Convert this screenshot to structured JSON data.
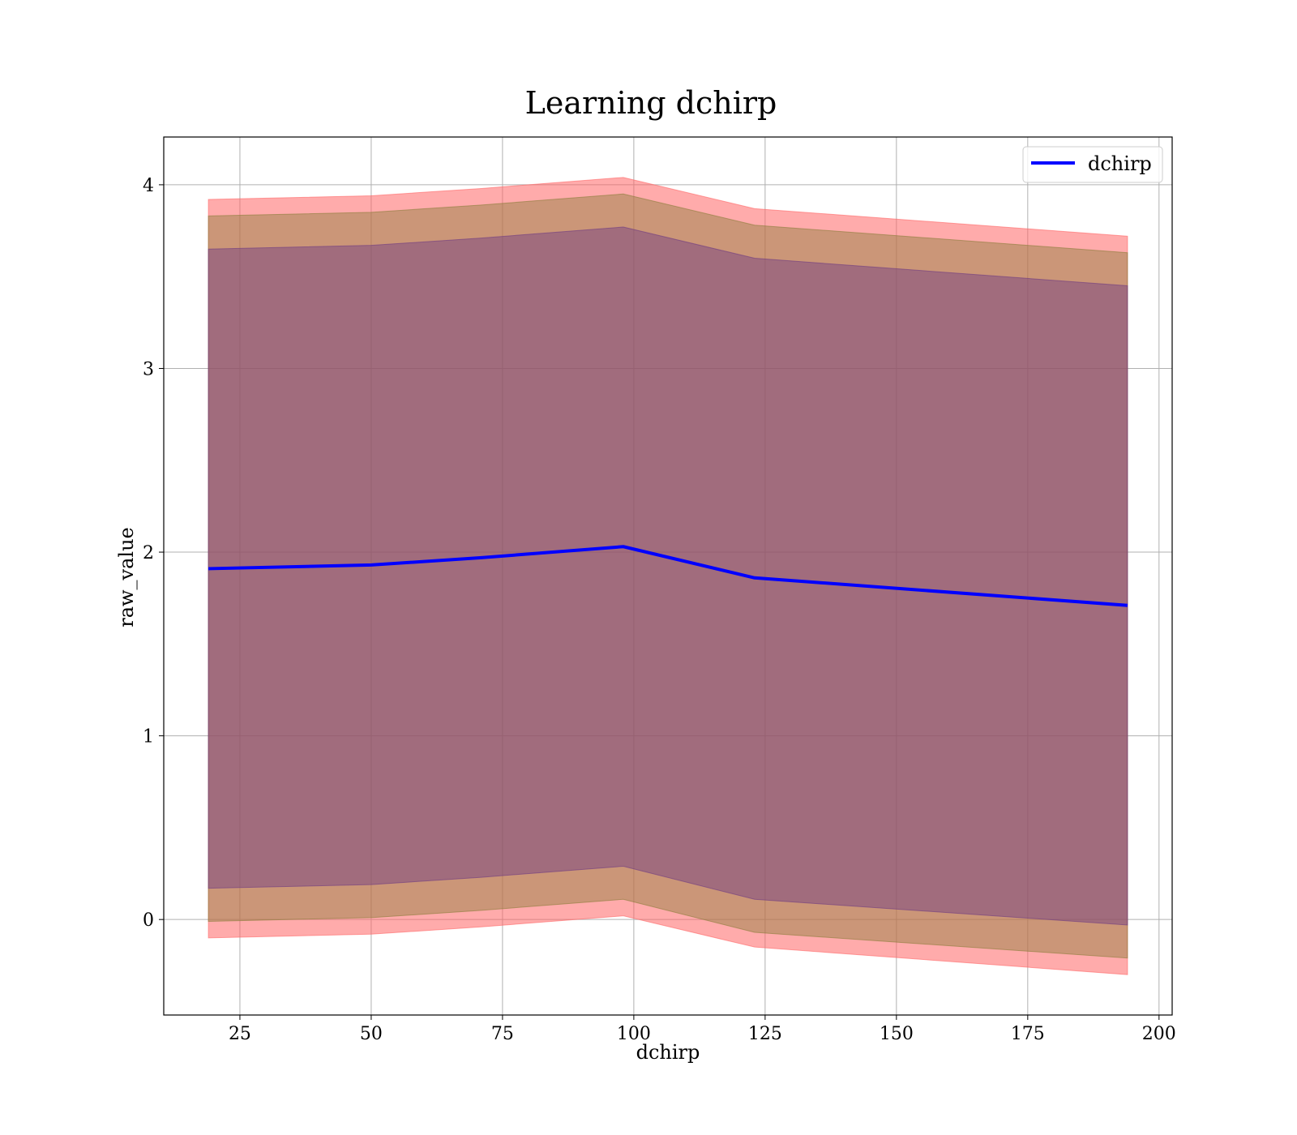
{
  "chart_data": {
    "type": "line",
    "title": "Learning dchirp",
    "xlabel": "dchirp",
    "ylabel": "raw_value",
    "xlim": [
      10.5,
      202.5
    ],
    "ylim": [
      -0.52,
      4.26
    ],
    "xticks": [
      25,
      50,
      75,
      100,
      125,
      150,
      175,
      200
    ],
    "yticks": [
      0,
      1,
      2,
      3,
      4
    ],
    "grid": true,
    "legend_position": "top-right",
    "x": [
      19,
      50,
      71,
      98,
      123,
      194
    ],
    "series": [
      {
        "name": "dchirp",
        "color": "#0000ff",
        "values": [
          1.91,
          1.93,
          1.97,
          2.03,
          1.86,
          1.71
        ]
      }
    ],
    "bands": [
      {
        "color": "#ff6666",
        "opacity": 0.55,
        "lower": [
          -0.1,
          -0.08,
          -0.04,
          0.02,
          -0.15,
          -0.3
        ],
        "upper": [
          3.92,
          3.94,
          3.98,
          4.04,
          3.87,
          3.72
        ]
      },
      {
        "color": "#8b7d3a",
        "opacity": 0.45,
        "lower": [
          -0.01,
          0.01,
          0.05,
          0.11,
          -0.07,
          -0.21
        ],
        "upper": [
          3.83,
          3.85,
          3.89,
          3.95,
          3.78,
          3.63
        ]
      },
      {
        "color": "#6e3a82",
        "opacity": 0.45,
        "lower": [
          0.17,
          0.19,
          0.23,
          0.29,
          0.11,
          -0.03
        ],
        "upper": [
          3.65,
          3.67,
          3.71,
          3.77,
          3.6,
          3.45
        ]
      }
    ]
  }
}
